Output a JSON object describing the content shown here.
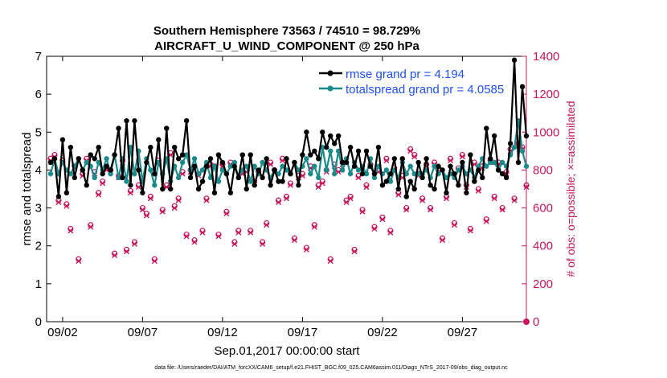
{
  "chart_data": {
    "type": "line",
    "title": "Southern Hemisphere 73563 / 74510 = 98.729%",
    "subtitle": "AIRCRAFT_U_WIND_COMPONENT @ 250 hPa",
    "xlabel": "Sep.01,2017 00:00:00 start",
    "ylabel": "rmse and totalspread",
    "y2label": "# of obs: o=possible; ×=assimilated",
    "xlim": [
      0,
      120
    ],
    "ylim": [
      0,
      7
    ],
    "y2lim": [
      0,
      1400
    ],
    "xticks": [
      {
        "x": 4,
        "label": "09/02"
      },
      {
        "x": 24,
        "label": "09/07"
      },
      {
        "x": 44,
        "label": "09/12"
      },
      {
        "x": 64,
        "label": "09/17"
      },
      {
        "x": 84,
        "label": "09/22"
      },
      {
        "x": 104,
        "label": "09/27"
      }
    ],
    "yticks": [
      0,
      1,
      2,
      3,
      4,
      5,
      6,
      7
    ],
    "y2ticks": [
      0,
      200,
      400,
      600,
      800,
      1000,
      1200,
      1400
    ],
    "legend_position": "top-right",
    "footnote": "data file: /Users/raeder/DAI/ATM_forcXX/CAM6_setup/f.e21.FHIST_BGC.f09_025.CAM6assim.011/Diags_NTrS_2017-09/obs_diag_output.nc",
    "colors": {
      "rmse": "#000000",
      "spread": "#1a8a8a",
      "obs": "#c8175c",
      "legend_text": "#1f4fff"
    },
    "series": [
      {
        "name": "rmse grand pr = 4.194",
        "axis": "left",
        "values": [
          4.2,
          4.3,
          3.3,
          4.8,
          3.4,
          4.6,
          3.8,
          4.3,
          4.0,
          3.6,
          4.4,
          4.3,
          4.6,
          3.9,
          4.1,
          4.0,
          4.4,
          5.1,
          3.8,
          5.3,
          3.6,
          5.3,
          4.0,
          3.4,
          4.2,
          4.6,
          3.9,
          4.8,
          3.5,
          5.1,
          3.5,
          4.6,
          4.3,
          4.4,
          5.3,
          3.8,
          4.1,
          3.5,
          3.7,
          4.1,
          4.3,
          3.4,
          4.4,
          4.2,
          3.9,
          3.4,
          4.1,
          3.8,
          4.4,
          3.5,
          4.4,
          3.6,
          4.0,
          3.8,
          4.3,
          3.6,
          4.0,
          3.7,
          3.7,
          4.3,
          3.9,
          4.2,
          3.6,
          4.4,
          5.0,
          4.4,
          4.5,
          4.3,
          5.0,
          4.6,
          4.9,
          4.7,
          4.9,
          4.2,
          4.2,
          4.6,
          4.1,
          4.5,
          3.9,
          4.5,
          4.1,
          3.9,
          4.6,
          3.6,
          3.7,
          3.9,
          4.3,
          3.5,
          4.3,
          3.3,
          3.7,
          3.5,
          4.2,
          3.8,
          4.3,
          3.6,
          3.5,
          4.1,
          4.0,
          3.4,
          4.1,
          3.9,
          3.6,
          4.2,
          3.4,
          4.4,
          3.7,
          4.0,
          3.8,
          5.1,
          4.3,
          4.9,
          4.0,
          3.9,
          3.8,
          4.7,
          6.9,
          4.2,
          6.2,
          4.9
        ]
      },
      {
        "name": "totalspread grand pr = 4.0585",
        "axis": "left",
        "values": [
          3.9,
          4.3,
          3.9,
          4.2,
          4.0,
          3.9,
          4.1,
          4.3,
          4.0,
          4.2,
          4.1,
          3.8,
          4.2,
          4.0,
          4.3,
          3.9,
          4.4,
          3.8,
          4.3,
          3.7,
          4.6,
          3.9,
          4.5,
          3.7,
          4.3,
          4.0,
          3.6,
          4.2,
          3.9,
          4.3,
          3.7,
          4.1,
          3.8,
          4.2,
          4.4,
          4.0,
          4.3,
          3.9,
          4.0,
          4.2,
          3.8,
          4.1,
          3.7,
          4.0,
          3.9,
          4.1,
          4.2,
          3.8,
          4.0,
          4.1,
          3.7,
          4.1,
          3.9,
          4.2,
          4.0,
          3.8,
          4.0,
          3.9,
          4.1,
          4.0,
          3.9,
          4.2,
          4.0,
          4.1,
          4.3,
          3.9,
          4.1,
          3.8,
          4.6,
          4.0,
          4.5,
          3.9,
          4.5,
          4.0,
          4.3,
          3.9,
          4.2,
          4.0,
          4.1,
          3.9,
          4.3,
          3.8,
          4.1,
          3.9,
          4.0,
          3.7,
          4.0,
          3.8,
          4.2,
          3.9,
          4.1,
          3.9,
          3.9,
          3.9,
          4.0,
          3.8,
          4.1,
          3.9,
          4.0,
          3.8,
          3.9,
          3.8,
          4.0,
          4.1,
          3.9,
          4.0,
          3.8,
          4.1,
          4.3,
          4.1,
          4.2,
          4.2,
          4.0,
          4.2,
          4.1,
          4.4,
          4.6,
          5.3,
          4.5,
          4.1
        ]
      },
      {
        "name": "possible",
        "axis": "right",
        "marker": "o",
        "values": [
          860,
          880,
          640,
          850,
          620,
          490,
          820,
          330,
          780,
          860,
          510,
          790,
          680,
          740,
          810,
          800,
          360,
          770,
          850,
          380,
          690,
          420,
          720,
          600,
          570,
          660,
          330,
          850,
          590,
          720,
          890,
          610,
          650,
          790,
          460,
          800,
          430,
          780,
          480,
          650,
          830,
          820,
          460,
          830,
          580,
          840,
          420,
          480,
          790,
          800,
          480,
          740,
          790,
          420,
          520,
          840,
          800,
          640,
          860,
          660,
          730,
          440,
          770,
          780,
          390,
          820,
          510,
          720,
          740,
          800,
          330,
          830,
          800,
          840,
          640,
          660,
          380,
          770,
          590,
          720,
          830,
          500,
          800,
          550,
          860,
          480,
          810,
          680,
          770,
          600,
          910,
          880,
          780,
          650,
          830,
          600,
          840,
          800,
          440,
          660,
          860,
          520,
          810,
          880,
          720,
          490,
          840,
          700,
          820,
          540,
          850,
          660,
          840,
          600,
          790,
          910,
          650,
          940,
          920,
          720
        ]
      },
      {
        "name": "assimilated",
        "axis": "right",
        "marker": "x",
        "values": [
          850,
          870,
          630,
          840,
          610,
          480,
          810,
          320,
          770,
          850,
          500,
          780,
          670,
          730,
          800,
          790,
          350,
          760,
          840,
          370,
          680,
          410,
          710,
          590,
          560,
          650,
          320,
          840,
          580,
          710,
          880,
          600,
          640,
          780,
          450,
          790,
          420,
          770,
          470,
          640,
          820,
          810,
          450,
          820,
          570,
          830,
          410,
          470,
          780,
          790,
          470,
          730,
          780,
          410,
          510,
          830,
          790,
          630,
          850,
          650,
          720,
          430,
          760,
          770,
          380,
          810,
          500,
          710,
          730,
          790,
          320,
          820,
          790,
          830,
          630,
          650,
          370,
          760,
          580,
          710,
          820,
          490,
          790,
          540,
          850,
          470,
          800,
          670,
          760,
          590,
          900,
          870,
          770,
          640,
          820,
          590,
          830,
          790,
          430,
          650,
          850,
          510,
          800,
          870,
          710,
          480,
          830,
          690,
          810,
          530,
          840,
          650,
          830,
          590,
          780,
          900,
          640,
          930,
          910,
          710
        ]
      }
    ]
  }
}
